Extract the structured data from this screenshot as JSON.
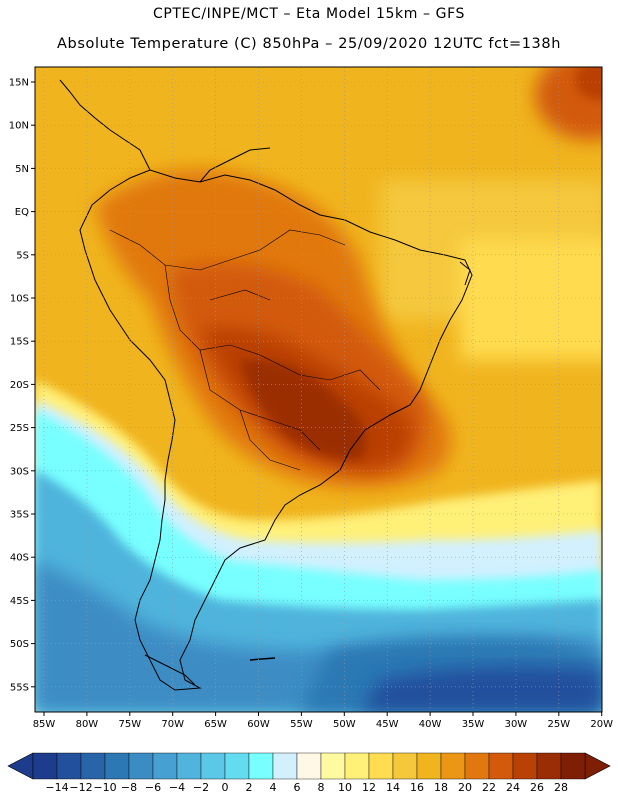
{
  "header": {
    "line1": "CPTEC/INPE/MCT –  Eta Model 15km – GFS",
    "line2": "Absolute Temperature (C) 850hPa – 25/09/2020 12UTC fct=138h"
  },
  "lat_ticks": [
    "15N",
    "10N",
    "5N",
    "EQ",
    "5S",
    "10S",
    "15S",
    "20S",
    "25S",
    "30S",
    "35S",
    "40S",
    "45S",
    "50S",
    "55S"
  ],
  "lon_ticks": [
    "85W",
    "80W",
    "75W",
    "70W",
    "65W",
    "60W",
    "55W",
    "50W",
    "45W",
    "40W",
    "35W",
    "30W",
    "25W",
    "20W"
  ],
  "colorbar": {
    "labels": [
      "-14",
      "-12",
      "-10",
      "-8",
      "-6",
      "-4",
      "-2",
      "0",
      "2",
      "4",
      "6",
      "8",
      "10",
      "12",
      "14",
      "16",
      "18",
      "20",
      "22",
      "24",
      "26",
      "28"
    ],
    "colors": [
      "#1e3c8c",
      "#23509c",
      "#2864a8",
      "#2c78b4",
      "#3c8cc4",
      "#46a0d2",
      "#50b4dc",
      "#5ac8e6",
      "#64dcf0",
      "#78ffff",
      "#d2f0ff",
      "#fff8e6",
      "#fffaa0",
      "#fff078",
      "#ffdc50",
      "#f5c83c",
      "#f0b41e",
      "#eb9614",
      "#e1780f",
      "#d25a0a",
      "#b94106",
      "#9b2d05",
      "#7d1e05"
    ],
    "under_color": "#1e3c8c",
    "over_color": "#7d1e05"
  },
  "map": {
    "region": "South America",
    "lon_range": [
      -85,
      -20
    ],
    "lat_range": [
      -57.5,
      17.5
    ],
    "field": "temperature 850hPa"
  }
}
